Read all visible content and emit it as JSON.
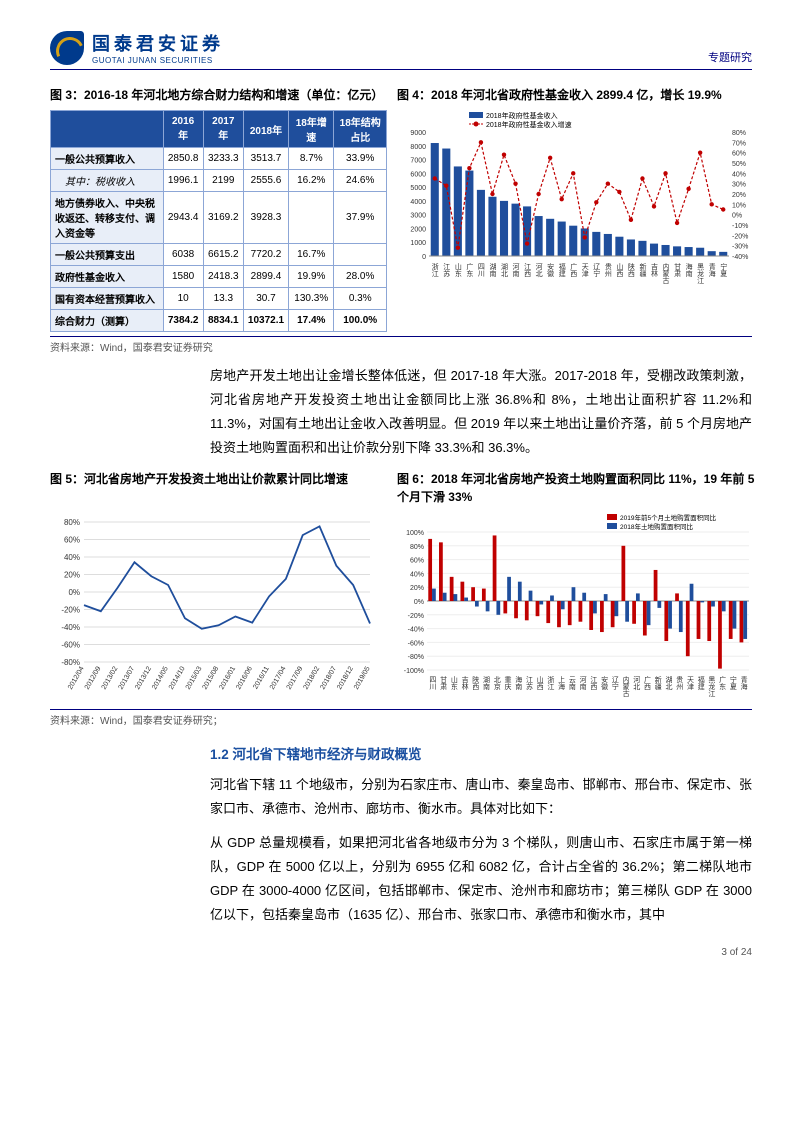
{
  "header": {
    "logo_cn": "国泰君安证券",
    "logo_en": "GUOTAI JUNAN SECURITIES",
    "topic": "专题研究"
  },
  "fig3": {
    "title": "图 3：2016-18 年河北地方综合财力结构和增速（单位：亿元）",
    "columns": [
      "",
      "2016年",
      "2017年",
      "2018年",
      "18年增速",
      "18年结构占比"
    ],
    "rows": [
      [
        "一般公共预算收入",
        "2850.8",
        "3233.3",
        "3513.7",
        "8.7%",
        "33.9%"
      ],
      [
        "其中：税收收入",
        "1996.1",
        "2199",
        "2555.6",
        "16.2%",
        "24.6%"
      ],
      [
        "地方债券收入、中央税收返还、转移支付、调入资金等",
        "2943.4",
        "3169.2",
        "3928.3",
        "",
        "37.9%"
      ],
      [
        "一般公共预算支出",
        "6038",
        "6615.2",
        "7720.2",
        "16.7%",
        ""
      ],
      [
        "政府性基金收入",
        "1580",
        "2418.3",
        "2899.4",
        "19.9%",
        "28.0%"
      ],
      [
        "国有资本经营预算收入",
        "10",
        "13.3",
        "30.7",
        "130.3%",
        "0.3%"
      ],
      [
        "综合财力（测算）",
        "7384.2",
        "8834.1",
        "10372.1",
        "17.4%",
        "100.0%"
      ]
    ],
    "header_bg": "#1f4e9c",
    "header_fg": "#ffffff",
    "cell_border": "#8ca6d6",
    "rowhead_bg": "#e8eef8"
  },
  "fig4": {
    "title": "图 4：2018 年河北省政府性基金收入 2899.4 亿，增长 19.9%",
    "legend_bar": "2018年政府性基金收入",
    "legend_line": "2018年政府性基金收入增速",
    "y1_ticks": [
      0,
      1000,
      2000,
      3000,
      4000,
      5000,
      6000,
      7000,
      8000,
      9000
    ],
    "y2_ticks": [
      -40,
      -30,
      -20,
      -10,
      0,
      10,
      20,
      30,
      40,
      50,
      60,
      70,
      80
    ],
    "bar_color": "#1f4e9c",
    "line_color": "#c00000",
    "bg_color": "#ffffff",
    "categories": [
      "浙江",
      "江苏",
      "山东",
      "广东",
      "四川",
      "湖南",
      "湖北",
      "河南",
      "江西",
      "河北",
      "安徽",
      "福建",
      "广西",
      "天津",
      "辽宁",
      "贵州",
      "山西",
      "陕西",
      "新疆",
      "吉林",
      "内蒙古",
      "甘肃",
      "海南",
      "黑龙江",
      "青海",
      "宁夏"
    ],
    "bars": [
      8200,
      7800,
      6500,
      6200,
      4800,
      4300,
      4000,
      3800,
      3600,
      2900,
      2700,
      2500,
      2200,
      2000,
      1750,
      1600,
      1400,
      1200,
      1100,
      900,
      800,
      700,
      650,
      600,
      350,
      300
    ],
    "line": [
      35,
      28,
      -32,
      45,
      70,
      20,
      58,
      30,
      -28,
      20,
      55,
      15,
      40,
      -22,
      12,
      30,
      22,
      -5,
      35,
      8,
      40,
      -8,
      25,
      60,
      10,
      5
    ]
  },
  "source34": "资料来源：Wind，国泰君安证券研究",
  "para1": "房地产开发土地出让金增长整体低迷，但 2017-18 年大涨。2017-2018 年，受棚改政策刺激，河北省房地产开发投资土地出让金额同比上涨 36.8%和 8%，土地出让面积扩容 11.2%和 11.3%，对国有土地出让金收入改善明显。但 2019 年以来土地出让量价齐落，前 5 个月房地产投资土地购置面积和出让价款分别下降 33.3%和 36.3%。",
  "fig5": {
    "title": "图 5：河北省房地产开发投资土地出让价款累计同比增速",
    "line_color": "#1f4e9c",
    "y_ticks": [
      -80,
      -60,
      -40,
      -20,
      0,
      20,
      40,
      60,
      80
    ],
    "x_labels": [
      "2012/04",
      "2012/09",
      "2013/02",
      "2013/07",
      "2013/12",
      "2014/05",
      "2014/10",
      "2015/03",
      "2015/08",
      "2016/01",
      "2016/06",
      "2016/11",
      "2017/04",
      "2017/09",
      "2018/02",
      "2018/07",
      "2018/12",
      "2019/05"
    ],
    "values": [
      -15,
      -22,
      5,
      34,
      18,
      8,
      -30,
      -42,
      -38,
      -28,
      -35,
      -5,
      15,
      65,
      75,
      30,
      8,
      -36
    ]
  },
  "fig6": {
    "title": "图 6：2018 年河北省房地产投资土地购置面积同比 11%，19 年前 5 个月下滑 33%",
    "legend_a": "2019年前5个月土地购置面积同比",
    "legend_b": "2018年土地购置面积同比",
    "color_a": "#c00000",
    "color_b": "#1f4e9c",
    "y_ticks": [
      -100,
      -80,
      -60,
      -40,
      -20,
      0,
      20,
      40,
      60,
      80,
      100
    ],
    "categories": [
      "四川",
      "甘肃",
      "山东",
      "吉林",
      "陕西",
      "湖南",
      "北京",
      "重庆",
      "海南",
      "江苏",
      "山西",
      "浙江",
      "上海",
      "云南",
      "河南",
      "江西",
      "安徽",
      "辽宁",
      "内蒙古",
      "河北",
      "广西",
      "新疆",
      "湖北",
      "贵州",
      "天津",
      "福建",
      "黑龙江",
      "广东",
      "宁夏",
      "青海"
    ],
    "values_2019": [
      90,
      85,
      35,
      28,
      20,
      18,
      95,
      -18,
      -25,
      -28,
      -22,
      -32,
      -38,
      -35,
      -30,
      -42,
      -45,
      -38,
      80,
      -33,
      -50,
      45,
      -58,
      11,
      -80,
      -55,
      -58,
      -98,
      -55,
      -60
    ],
    "values_2018": [
      18,
      12,
      10,
      5,
      -8,
      -15,
      -20,
      35,
      28,
      15,
      -5,
      8,
      -12,
      20,
      12,
      -18,
      10,
      -22,
      -30,
      11,
      -35,
      -10,
      -40,
      -45,
      25,
      -2,
      -8,
      -15,
      -40,
      -55
    ]
  },
  "source56": "资料来源：Wind，国泰君安证券研究；",
  "section12": "1.2 河北省下辖地市经济与财政概览",
  "para2": "河北省下辖 11 个地级市，分别为石家庄市、唐山市、秦皇岛市、邯郸市、邢台市、保定市、张家口市、承德市、沧州市、廊坊市、衡水市。具体对比如下：",
  "para3": "从 GDP 总量规模看，如果把河北省各地级市分为 3 个梯队，则唐山市、石家庄市属于第一梯队，GDP 在 5000 亿以上，分别为 6955 亿和 6082 亿，合计占全省的 36.2%；第二梯队地市 GDP 在 3000-4000 亿区间，包括邯郸市、保定市、沧州市和廊坊市；第三梯队 GDP 在 3000 亿以下，包括秦皇岛市（1635 亿）、邢台市、张家口市、承德市和衡水市，其中",
  "pagenum": "3 of 24"
}
